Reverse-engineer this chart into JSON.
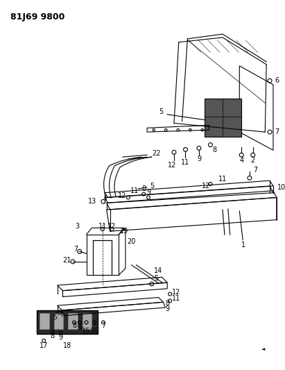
{
  "title": "81J69 9800",
  "bg_color": "#ffffff",
  "line_color": "#000000",
  "title_fontsize": 9,
  "label_fontsize": 7,
  "fig_width": 4.11,
  "fig_height": 5.33,
  "dpi": 100
}
